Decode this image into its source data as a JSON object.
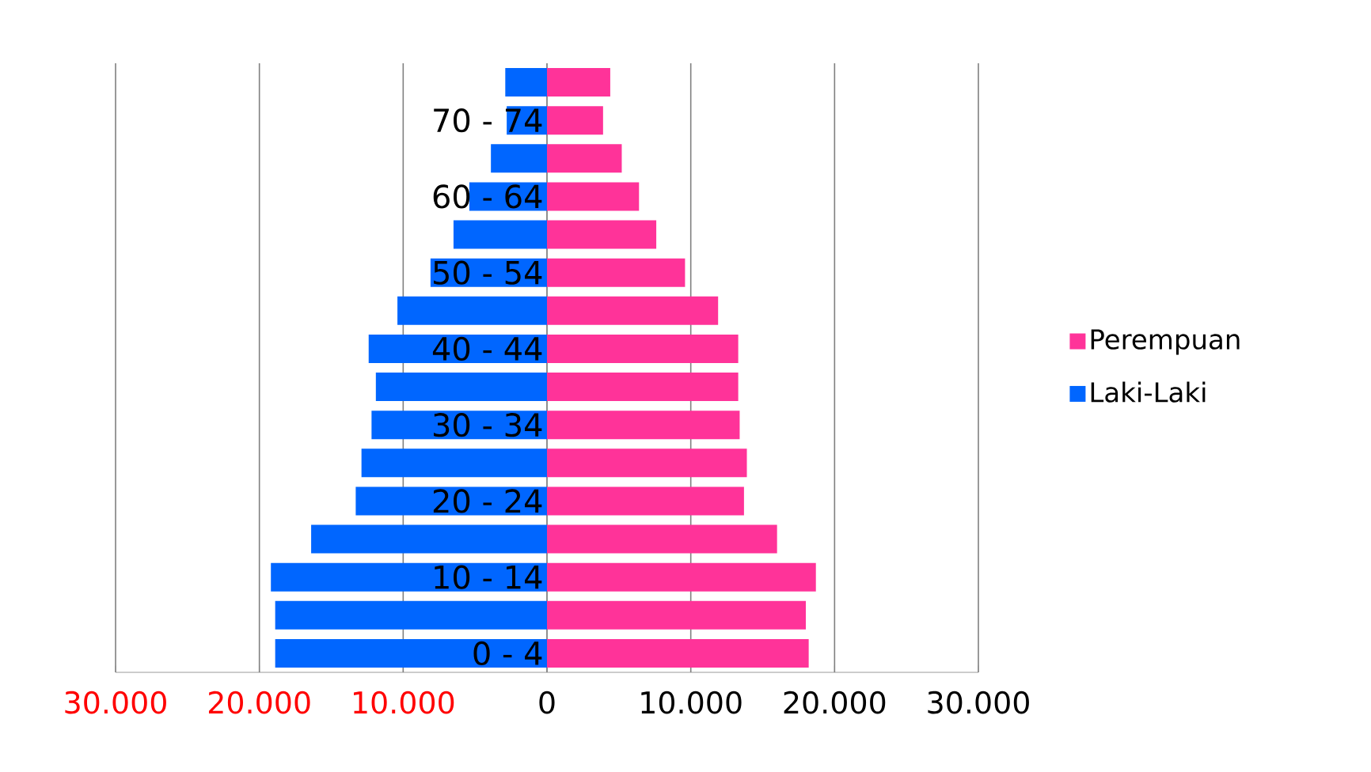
{
  "chart_data": {
    "type": "bar",
    "orientation": "horizontal",
    "categories": [
      null,
      "70 - 74",
      null,
      "60 - 64",
      null,
      "50 - 54",
      null,
      "40 - 44",
      null,
      "30 - 34",
      null,
      "20 - 24",
      null,
      "10 - 14",
      null,
      "0 - 4"
    ],
    "series": [
      {
        "name": "Perempuan",
        "color": "#ff3399",
        "values": [
          4400,
          3900,
          5200,
          6400,
          7600,
          9600,
          11900,
          13300,
          13300,
          13400,
          13900,
          13700,
          16000,
          18700,
          18000,
          18200
        ]
      },
      {
        "name": "Laki-Laki",
        "color": "#0066ff",
        "values": [
          -2900,
          -2800,
          -3900,
          -5400,
          -6500,
          -8100,
          -10400,
          -12400,
          -11900,
          -12200,
          -12900,
          -13300,
          -16400,
          -19200,
          -18900,
          -18900
        ]
      }
    ],
    "xlim": [
      -30000,
      30000
    ],
    "xticks": [
      {
        "value": -30000,
        "label": "30.000"
      },
      {
        "value": -20000,
        "label": "20.000"
      },
      {
        "value": -10000,
        "label": "10.000"
      },
      0,
      {
        "value": 10000,
        "label": "10.000"
      },
      {
        "value": 20000,
        "label": "20.000"
      },
      {
        "value": 30000,
        "label": "30.000"
      }
    ],
    "grid": "x",
    "legend": "right",
    "stacked": true
  }
}
